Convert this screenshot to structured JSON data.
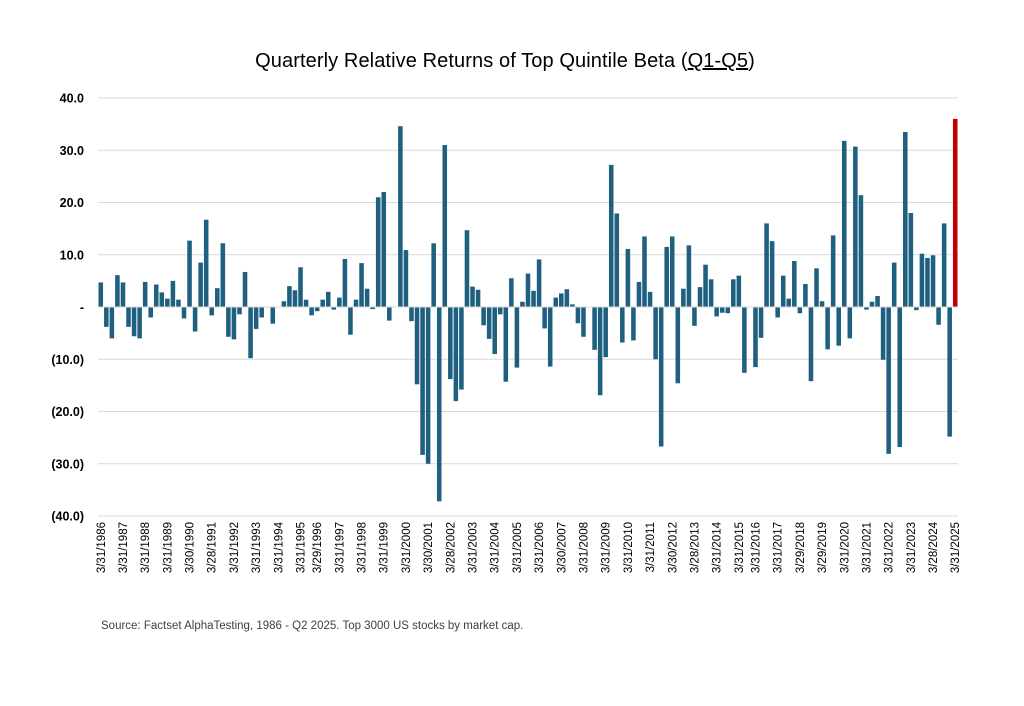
{
  "title_main": "Quarterly Relative Returns of Top Quintile Beta (",
  "title_underlined": "Q1-Q5",
  "title_end": ")",
  "source": "Source: Factset AlphaTesting, 1986 - Q2 2025. Top 3000 US stocks by market cap.",
  "chart_data": {
    "type": "bar",
    "title": "Quarterly Relative Returns of Top Quintile Beta (Q1-Q5)",
    "xlabel": "",
    "ylabel": "",
    "ylim": [
      -40,
      40
    ],
    "yticks": [
      40,
      30,
      20,
      10,
      0,
      -10,
      -20,
      -30,
      -40
    ],
    "ytick_labels": [
      "40.0",
      "30.0",
      "20.0",
      "10.0",
      "-",
      "(10.0)",
      "(20.0)",
      "(30.0)",
      "(40.0)"
    ],
    "grid": true,
    "bar_color": "#1f5f7f",
    "highlight_color": "#c00000",
    "highlight_last": true,
    "x_labels": [
      "3/31/1986",
      "3/31/1987",
      "3/31/1988",
      "3/31/1989",
      "3/30/1990",
      "3/28/1991",
      "3/31/1992",
      "3/31/1993",
      "3/31/1994",
      "3/31/1995",
      "3/29/1996",
      "3/31/1997",
      "3/31/1998",
      "3/31/1999",
      "3/31/2000",
      "3/30/2001",
      "3/28/2002",
      "3/31/2003",
      "3/31/2004",
      "3/31/2005",
      "3/31/2006",
      "3/30/2007",
      "3/31/2008",
      "3/31/2009",
      "3/31/2010",
      "3/31/2011",
      "3/30/2012",
      "3/28/2013",
      "3/31/2014",
      "3/31/2015",
      "3/31/2016",
      "3/31/2017",
      "3/29/2018",
      "3/29/2019",
      "3/31/2020",
      "3/31/2021",
      "3/31/2022",
      "3/31/2023",
      "3/28/2024",
      "3/31/2025"
    ],
    "values": [
      4.7,
      -3.8,
      -6.0,
      6.1,
      4.7,
      -3.8,
      -5.6,
      -6.0,
      4.8,
      -2.0,
      4.3,
      2.8,
      1.6,
      5.0,
      1.4,
      -2.2,
      12.7,
      -4.7,
      8.5,
      16.7,
      -1.6,
      3.6,
      12.2,
      -5.7,
      -6.2,
      -1.4,
      6.7,
      -9.8,
      -4.2,
      -2.0,
      0.0,
      -3.2,
      0.0,
      1.1,
      4.0,
      3.2,
      7.6,
      1.4,
      -1.6,
      -0.8,
      1.4,
      2.9,
      -0.5,
      1.8,
      9.2,
      -5.3,
      1.4,
      8.4,
      3.5,
      -0.4,
      21.0,
      22.0,
      -2.6,
      0.0,
      34.6,
      10.9,
      -2.7,
      -14.8,
      -28.3,
      -30.0,
      12.2,
      -37.2,
      31.0,
      -13.8,
      -18.0,
      -15.8,
      14.7,
      3.9,
      3.3,
      -3.5,
      -6.1,
      -9.0,
      -1.4,
      -14.3,
      5.5,
      -11.6,
      1.0,
      6.4,
      3.1,
      9.1,
      -4.1,
      -11.4,
      1.8,
      2.6,
      3.4,
      0.5,
      -3.1,
      -5.7,
      0.0,
      -8.2,
      -16.9,
      -9.6,
      27.2,
      17.9,
      -6.8,
      11.1,
      -6.4,
      4.8,
      13.5,
      2.9,
      -10.0,
      -26.7,
      11.5,
      13.5,
      -14.6,
      3.5,
      11.8,
      -3.6,
      3.8,
      8.1,
      5.3,
      -1.8,
      -1.1,
      -1.2,
      5.3,
      6.0,
      -12.6,
      0.0,
      -11.5,
      -5.9,
      16.0,
      12.6,
      -2.0,
      6.0,
      1.6,
      8.8,
      -1.2,
      4.4,
      -14.2,
      7.4,
      1.1,
      -8.1,
      13.7,
      -7.4,
      31.8,
      -6.0,
      30.7,
      21.4,
      -0.5,
      1.0,
      2.1,
      -10.1,
      -28.1,
      8.5,
      -26.8,
      33.5,
      18.0,
      -0.6,
      10.2,
      9.4,
      9.9,
      -3.4,
      16.0,
      -24.8,
      36.0
    ]
  }
}
